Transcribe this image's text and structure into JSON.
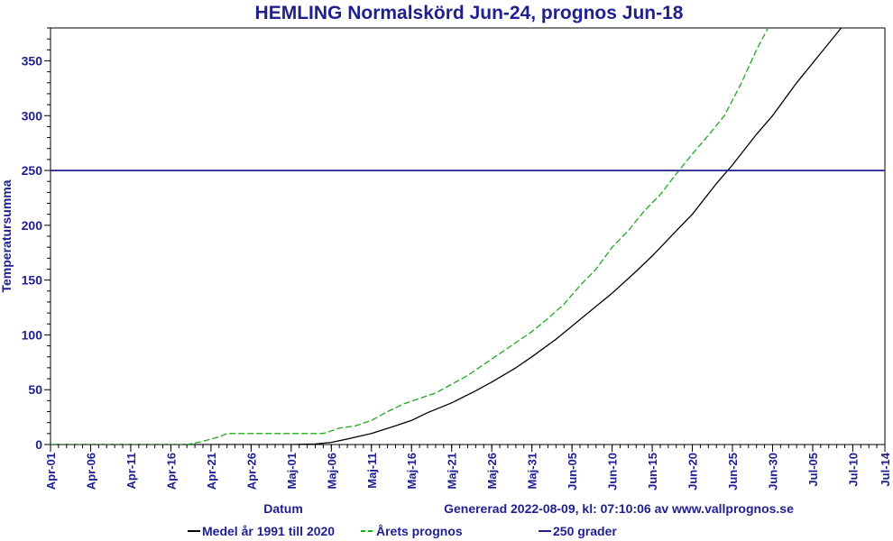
{
  "chart_data": {
    "type": "line",
    "title": "HEMLING Normalskörd Jun-24, prognos Jun-18",
    "xlabel": "Datum",
    "ylabel": "Temperatursumma",
    "ylim": [
      0,
      380
    ],
    "yticks": [
      0,
      50,
      100,
      150,
      200,
      250,
      300,
      350
    ],
    "xlim": [
      0,
      104
    ],
    "xticks": [
      {
        "day": 0,
        "label": "Apr-01"
      },
      {
        "day": 5,
        "label": "Apr-06"
      },
      {
        "day": 10,
        "label": "Apr-11"
      },
      {
        "day": 15,
        "label": "Apr-16"
      },
      {
        "day": 20,
        "label": "Apr-21"
      },
      {
        "day": 25,
        "label": "Apr-26"
      },
      {
        "day": 30,
        "label": "Maj-01"
      },
      {
        "day": 35,
        "label": "Maj-06"
      },
      {
        "day": 40,
        "label": "Maj-11"
      },
      {
        "day": 45,
        "label": "Maj-16"
      },
      {
        "day": 50,
        "label": "Maj-21"
      },
      {
        "day": 55,
        "label": "Maj-26"
      },
      {
        "day": 60,
        "label": "Maj-31"
      },
      {
        "day": 65,
        "label": "Jun-05"
      },
      {
        "day": 70,
        "label": "Jun-10"
      },
      {
        "day": 75,
        "label": "Jun-15"
      },
      {
        "day": 80,
        "label": "Jun-20"
      },
      {
        "day": 85,
        "label": "Jun-25"
      },
      {
        "day": 90,
        "label": "Jun-30"
      },
      {
        "day": 95,
        "label": "Jul-05"
      },
      {
        "day": 100,
        "label": "Jul-10"
      },
      {
        "day": 104,
        "label": "Jul-14"
      }
    ],
    "grid": false,
    "legend_position": "bottom",
    "footer": "Genererad 2022-08-09, kl: 07:10:06 av www.vallprognos.se",
    "series": [
      {
        "name": "Medel år 1991 till 2020",
        "color": "#000000",
        "style": "solid",
        "x": [
          0,
          16,
          25,
          30,
          33,
          35,
          37,
          40,
          43,
          45,
          47,
          50,
          53,
          55,
          58,
          60,
          63,
          65,
          68,
          70,
          73,
          75,
          78,
          80,
          83,
          85,
          88,
          90,
          93,
          95,
          98,
          100,
          101
        ],
        "values": [
          0,
          0,
          0,
          0,
          0.5,
          2,
          5,
          10,
          17,
          22,
          29,
          38,
          49,
          57,
          70,
          80,
          96,
          108,
          126,
          138,
          158,
          172,
          195,
          210,
          238,
          255,
          283,
          300,
          330,
          348,
          375,
          393,
          402
        ]
      },
      {
        "name": "Årets prognos",
        "color": "#1faa1f",
        "style": "dashed",
        "x": [
          0,
          17,
          19,
          20,
          21,
          22,
          25,
          30,
          34,
          36,
          38,
          40,
          42,
          44,
          46,
          48,
          50,
          52,
          54,
          56,
          58,
          60,
          62,
          64,
          66,
          68,
          70,
          72,
          74,
          76,
          78,
          80,
          82,
          84,
          86,
          88,
          90,
          91
        ],
        "values": [
          0,
          0,
          3,
          5,
          7,
          10,
          10,
          10,
          10,
          15,
          17,
          22,
          30,
          37,
          42,
          47,
          55,
          63,
          73,
          83,
          93,
          103,
          115,
          128,
          145,
          160,
          180,
          195,
          213,
          228,
          247,
          265,
          282,
          300,
          328,
          360,
          388,
          400
        ]
      },
      {
        "name": "250 grader",
        "color": "#1f1f8f",
        "style": "solid",
        "x": [
          0,
          104
        ],
        "values": [
          250,
          250
        ]
      }
    ]
  }
}
